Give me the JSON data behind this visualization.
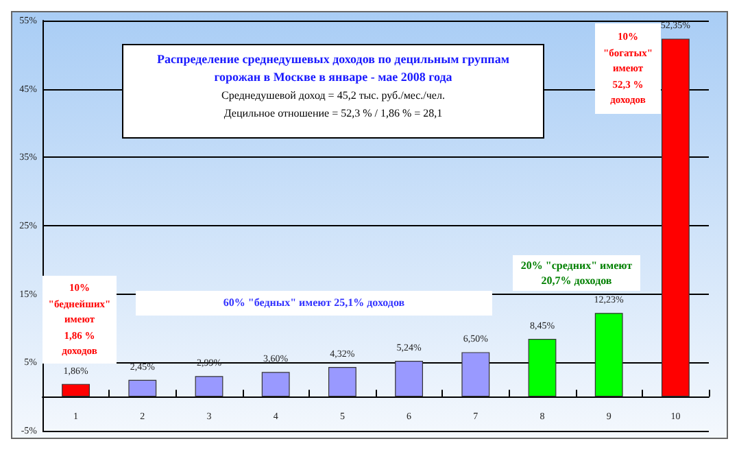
{
  "chart_data": {
    "type": "bar",
    "title": "Распределение среднедушевых доходов по децильным группам горожан в Москве в январе - мае 2008 года",
    "subtitle": "Среднедушевой доход = 45,2 тыс. руб./мес./чел.\nДецильное отношение = 52,3 % / 1,86 % = 28,1",
    "categories": [
      "1",
      "2",
      "3",
      "4",
      "5",
      "6",
      "7",
      "8",
      "9",
      "10"
    ],
    "values": [
      1.86,
      2.45,
      2.99,
      3.6,
      4.32,
      5.24,
      6.5,
      8.45,
      12.23,
      52.35
    ],
    "colors": [
      "#ff0000",
      "#9999ff",
      "#9999ff",
      "#9999ff",
      "#9999ff",
      "#9999ff",
      "#9999ff",
      "#00ff00",
      "#00ff00",
      "#ff0000"
    ],
    "value_labels": [
      "1,86%",
      "2,45%",
      "2,99%",
      "3,60%",
      "4,32%",
      "5,24%",
      "6,50%",
      "8,45%",
      "12,23%",
      "52,35%"
    ],
    "ylim": [
      -5,
      55
    ],
    "yticks": [
      {
        "value": -5,
        "label": "-5%"
      },
      {
        "value": 5,
        "label": "5%"
      },
      {
        "value": 15,
        "label": "15%"
      },
      {
        "value": 25,
        "label": "25%"
      },
      {
        "value": 35,
        "label": "35%"
      },
      {
        "value": 45,
        "label": "45%"
      },
      {
        "value": 55,
        "label": "55%"
      }
    ],
    "grid": "y",
    "annotations": [
      "10%\n\"беднейших\"\nимеют\n1,86 %\nдоходов",
      "60% \"бедных\" имеют 25,1% доходов",
      "20% \"средних\" имеют\n20,7% доходов",
      "10%\n\"богатых\"\nимеют\n52,3 %\nдоходов"
    ]
  }
}
